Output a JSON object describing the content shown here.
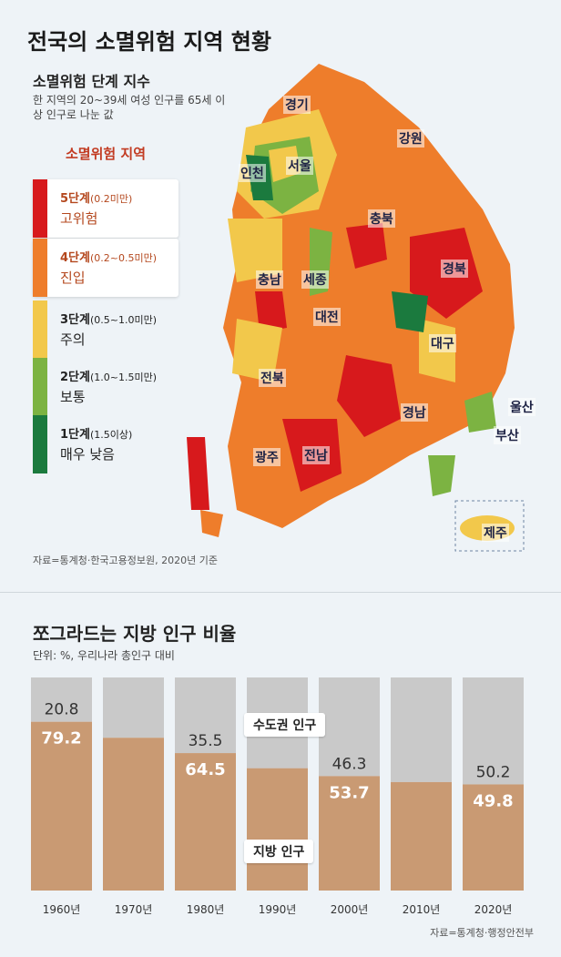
{
  "title": "전국의 소멸위험 지역 현황",
  "index": {
    "heading": "소멸위험 단계 지수",
    "description": "한 지역의 20~39세 여성 인구를 65세 이상 인구로 나눈 값"
  },
  "legend": {
    "heading": "소멸위험 지역",
    "items": [
      {
        "stage": "5단계",
        "range": "(0.2미만)",
        "name": "고위험",
        "color": "#d7191c"
      },
      {
        "stage": "4단계",
        "range": "(0.2~0.5미만)",
        "name": "진입",
        "color": "#ee7d2b"
      },
      {
        "stage": "3단계",
        "range": "(0.5~1.0미만)",
        "name": "주의",
        "color": "#f2c84b"
      },
      {
        "stage": "2단계",
        "range": "(1.0~1.5미만)",
        "name": "보통",
        "color": "#7cb342"
      },
      {
        "stage": "1단계",
        "range": "(1.5이상)",
        "name": "매우 낮음",
        "color": "#1b7a3e"
      }
    ]
  },
  "map_labels": [
    "경기",
    "강원",
    "인천",
    "서울",
    "충북",
    "경북",
    "충남",
    "세종",
    "대전",
    "대구",
    "전북",
    "울산",
    "경남",
    "부산",
    "광주",
    "전남",
    "제주"
  ],
  "map_source": "자료=통계청·한국고용정보원, 2020년 기준",
  "chart_data": {
    "type": "bar",
    "title": "쪼그라드는 지방 인구 비율",
    "unit": "단위: %, 우리나라 총인구 대비",
    "categories": [
      "1960년",
      "1970년",
      "1980년",
      "1990년",
      "2000년",
      "2010년",
      "2020년"
    ],
    "series": [
      {
        "name": "지방 인구",
        "values": [
          79.2,
          71.7,
          64.5,
          57.4,
          53.7,
          50.9,
          49.8
        ],
        "color": "#c99a73"
      },
      {
        "name": "수도권 인구",
        "values": [
          20.8,
          28.3,
          35.5,
          42.6,
          46.3,
          49.1,
          50.2
        ],
        "color": "#c9c9c9"
      }
    ],
    "labeled_indices": [
      0,
      2,
      4,
      6
    ],
    "stacked": true,
    "ylim": [
      0,
      100
    ]
  },
  "callouts": {
    "capital": "수도권 인구",
    "local": "지방 인구"
  },
  "chart_source": "자료=통계청·행정안전부"
}
